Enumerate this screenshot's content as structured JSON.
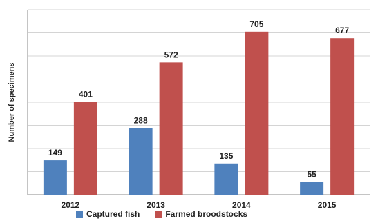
{
  "chart_data": {
    "type": "bar",
    "title": "",
    "xlabel": "",
    "ylabel": "Number of specimens",
    "categories": [
      "2012",
      "2013",
      "2014",
      "2015"
    ],
    "ylim": [
      0,
      800
    ],
    "grid": true,
    "legend_position": "bottom",
    "series": [
      {
        "name": "Captured fish",
        "color": "#4f81bd",
        "values": [
          149,
          288,
          135,
          55
        ]
      },
      {
        "name": "Farmed broodstocks",
        "color": "#c0504d",
        "values": [
          401,
          572,
          705,
          677
        ]
      }
    ]
  }
}
